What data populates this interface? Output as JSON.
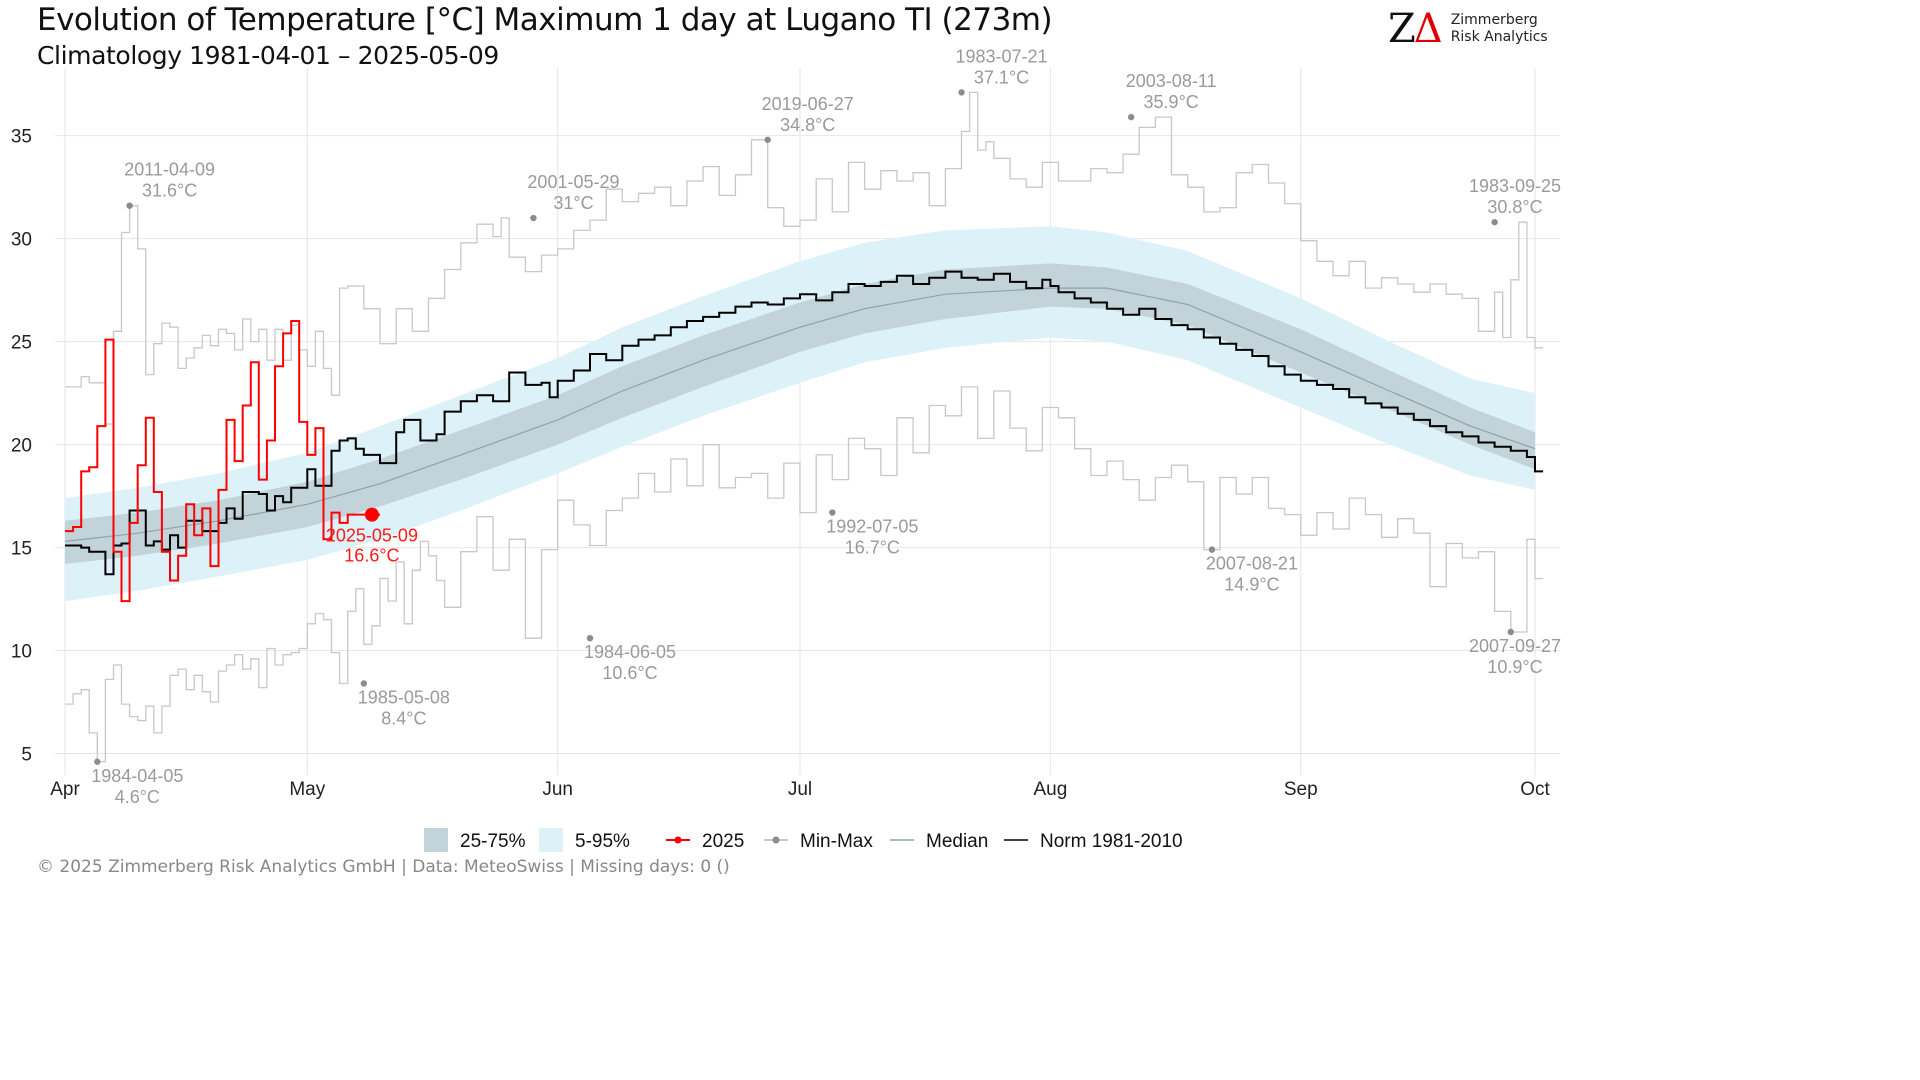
{
  "header": {
    "title": "Evolution of Temperature [°C] Maximum 1 day at Lugano  TI (273m)",
    "subtitle": "Climatology 1981-04-01 – 2025-05-09"
  },
  "logo": {
    "mark_z": "Z",
    "mark_delta": "Δ",
    "line1": "Zimmerberg",
    "line2": "Risk Analytics"
  },
  "footer": "©  2025 Zimmerberg Risk Analytics GmbH | Data: MeteoSwiss | Missing days: 0 ()",
  "colors": {
    "band_25_75": "#c2d3d9",
    "band_5_95": "#dcf1f8",
    "current": "#ff0000",
    "minmax": "#c8c8c8",
    "median": "#8fa3aa",
    "norm": "#000000",
    "annotation": "#9a9a9a",
    "grid": "#e6e6e6"
  },
  "chart_data": {
    "type": "line",
    "title": "Evolution of Temperature [°C] Maximum 1 day at Lugano  TI (273m)",
    "subtitle": "Climatology 1981-04-01 – 2025-05-09",
    "x_domain_doy": [
      1,
      183
    ],
    "ylim": [
      4.2,
      37.8
    ],
    "y_ticks": [
      5,
      10,
      15,
      20,
      25,
      30,
      35
    ],
    "x_ticks": [
      {
        "label": "Apr",
        "doy": 1
      },
      {
        "label": "May",
        "doy": 31
      },
      {
        "label": "Jun",
        "doy": 62
      },
      {
        "label": "Jul",
        "doy": 92
      },
      {
        "label": "Aug",
        "doy": 123
      },
      {
        "label": "Sep",
        "doy": 154
      },
      {
        "label": "Oct",
        "doy": 183
      }
    ],
    "legend": [
      {
        "label": "25-75%",
        "kind": "fill",
        "color_key": "band_25_75"
      },
      {
        "label": "5-95%",
        "kind": "fill",
        "color_key": "band_5_95"
      },
      {
        "label": "2025",
        "kind": "line-dot",
        "color_key": "current"
      },
      {
        "label": "Min-Max",
        "kind": "line-dot",
        "color_key": "minmax"
      },
      {
        "label": "Median",
        "kind": "line",
        "color_key": "median"
      },
      {
        "label": "Norm 1981-2010",
        "kind": "line",
        "color_key": "norm"
      }
    ],
    "legend_position": "bottom",
    "grid": true,
    "series": [
      {
        "name": "25-75%",
        "kind": "band",
        "x": [
          1,
          10,
          20,
          31,
          40,
          50,
          62,
          70,
          80,
          92,
          100,
          110,
          123,
          130,
          140,
          154,
          165,
          175,
          183
        ],
        "lower": [
          14.2,
          14.6,
          15.2,
          16.0,
          17.0,
          18.3,
          20.0,
          21.3,
          22.8,
          24.5,
          25.4,
          26.1,
          26.7,
          26.6,
          25.8,
          23.5,
          21.7,
          20.0,
          18.8
        ],
        "upper": [
          16.3,
          16.7,
          17.3,
          18.2,
          19.3,
          20.7,
          22.4,
          23.8,
          25.3,
          26.9,
          27.8,
          28.5,
          28.8,
          28.6,
          27.8,
          25.6,
          23.6,
          21.8,
          20.6
        ]
      },
      {
        "name": "5-95%",
        "kind": "band",
        "x": [
          1,
          10,
          20,
          31,
          40,
          50,
          62,
          70,
          80,
          92,
          100,
          110,
          123,
          130,
          140,
          154,
          165,
          175,
          183
        ],
        "lower": [
          12.4,
          12.9,
          13.6,
          14.4,
          15.4,
          16.8,
          18.6,
          19.9,
          21.4,
          23.0,
          24.0,
          24.7,
          25.2,
          25.0,
          24.1,
          21.8,
          20.0,
          18.5,
          17.8
        ],
        "upper": [
          17.4,
          17.9,
          18.6,
          19.6,
          20.9,
          22.4,
          24.2,
          25.7,
          27.2,
          28.9,
          29.8,
          30.4,
          30.6,
          30.3,
          29.4,
          27.1,
          25.0,
          23.2,
          22.5
        ]
      },
      {
        "name": "Median",
        "kind": "line",
        "x": [
          1,
          10,
          20,
          31,
          40,
          50,
          62,
          70,
          80,
          92,
          100,
          110,
          123,
          130,
          140,
          154,
          165,
          175,
          183
        ],
        "values": [
          15.3,
          15.7,
          16.3,
          17.1,
          18.1,
          19.5,
          21.2,
          22.6,
          24.1,
          25.7,
          26.6,
          27.3,
          27.6,
          27.6,
          26.8,
          24.5,
          22.6,
          20.9,
          19.8
        ]
      },
      {
        "name": "Norm 1981-2010",
        "kind": "step",
        "x": [
          1,
          3,
          4,
          6,
          7,
          8,
          9,
          11,
          12,
          13,
          14,
          15,
          16,
          18,
          20,
          21,
          22,
          23,
          25,
          26,
          27,
          28,
          29,
          31,
          32,
          34,
          35,
          36,
          37,
          38,
          40,
          42,
          43,
          45,
          47,
          48,
          50,
          52,
          54,
          56,
          58,
          60,
          61,
          62,
          64,
          66,
          68,
          70,
          72,
          74,
          76,
          78,
          80,
          82,
          84,
          86,
          88,
          90,
          92,
          94,
          96,
          98,
          100,
          102,
          104,
          106,
          108,
          110,
          112,
          114,
          116,
          118,
          120,
          122,
          123,
          124,
          126,
          128,
          130,
          132,
          134,
          136,
          138,
          140,
          142,
          144,
          146,
          148,
          150,
          152,
          154,
          156,
          158,
          160,
          162,
          164,
          166,
          168,
          170,
          172,
          174,
          176,
          178,
          180,
          182,
          183
        ],
        "values": [
          15.1,
          15.0,
          14.8,
          13.7,
          15.1,
          15.2,
          16.8,
          15.1,
          15.3,
          14.9,
          15.6,
          15.0,
          16.3,
          15.8,
          16.2,
          16.9,
          16.4,
          17.7,
          17.6,
          16.8,
          17.5,
          17.2,
          17.9,
          18.8,
          18.0,
          19.7,
          20.2,
          20.3,
          19.8,
          19.5,
          19.1,
          20.6,
          21.2,
          20.2,
          20.5,
          21.6,
          22.1,
          22.4,
          22.1,
          23.5,
          22.9,
          23.0,
          22.3,
          23.1,
          23.6,
          24.4,
          24.1,
          24.8,
          25.1,
          25.3,
          25.7,
          26.0,
          26.2,
          26.4,
          26.7,
          26.9,
          26.8,
          27.1,
          27.3,
          27.0,
          27.4,
          27.8,
          27.7,
          27.9,
          28.2,
          27.8,
          28.1,
          28.4,
          28.1,
          28.0,
          28.3,
          27.9,
          27.6,
          28.0,
          27.7,
          27.4,
          27.1,
          26.9,
          26.6,
          26.3,
          26.6,
          26.1,
          25.8,
          25.6,
          25.2,
          24.9,
          24.6,
          24.3,
          23.8,
          23.4,
          23.1,
          22.9,
          22.7,
          22.3,
          22.0,
          21.8,
          21.5,
          21.2,
          20.9,
          20.6,
          20.4,
          20.1,
          19.9,
          19.7,
          19.4,
          18.7
        ]
      },
      {
        "name": "Max",
        "kind": "step",
        "x": [
          1,
          3,
          4,
          6,
          7,
          8,
          9,
          10,
          11,
          12,
          13,
          14,
          15,
          16,
          17,
          18,
          19,
          20,
          21,
          22,
          23,
          24,
          25,
          26,
          27,
          28,
          29,
          30,
          31,
          32,
          33,
          34,
          35,
          36,
          38,
          40,
          42,
          44,
          46,
          48,
          50,
          52,
          54,
          55,
          56,
          58,
          60,
          62,
          64,
          66,
          68,
          70,
          72,
          74,
          76,
          78,
          80,
          82,
          84,
          86,
          88,
          90,
          92,
          94,
          96,
          98,
          100,
          102,
          104,
          106,
          108,
          110,
          112,
          113,
          114,
          115,
          116,
          118,
          120,
          122,
          124,
          126,
          128,
          130,
          132,
          134,
          136,
          138,
          140,
          142,
          144,
          146,
          148,
          150,
          152,
          154,
          156,
          158,
          160,
          162,
          164,
          166,
          168,
          170,
          172,
          174,
          176,
          178,
          179,
          180,
          181,
          182,
          183
        ],
        "values": [
          22.8,
          23.3,
          23.0,
          21.0,
          25.5,
          30.3,
          31.6,
          29.5,
          23.4,
          24.9,
          25.9,
          25.7,
          23.7,
          24.2,
          24.7,
          25.3,
          24.8,
          25.6,
          25.4,
          24.6,
          26.1,
          25.0,
          25.6,
          24.1,
          25.6,
          24.1,
          25.8,
          24.6,
          23.8,
          25.5,
          23.7,
          22.4,
          27.6,
          27.7,
          26.6,
          24.9,
          26.6,
          25.5,
          27.1,
          28.5,
          29.8,
          30.7,
          30.1,
          31.0,
          29.1,
          28.4,
          29.2,
          29.5,
          30.4,
          30.9,
          32.4,
          31.8,
          32.2,
          32.5,
          31.6,
          32.8,
          33.5,
          32.1,
          33.1,
          34.8,
          31.5,
          30.6,
          30.9,
          32.9,
          31.3,
          33.7,
          32.4,
          33.3,
          32.8,
          33.2,
          31.6,
          33.4,
          35.2,
          37.1,
          34.3,
          34.7,
          33.9,
          32.9,
          32.5,
          33.7,
          32.8,
          32.8,
          33.4,
          33.2,
          34.1,
          35.4,
          35.9,
          33.1,
          32.5,
          31.3,
          31.5,
          33.2,
          33.6,
          32.7,
          31.7,
          29.9,
          28.9,
          28.2,
          28.9,
          27.6,
          28.1,
          27.8,
          27.4,
          27.8,
          27.3,
          27.1,
          25.5,
          27.4,
          25.2,
          28.0,
          30.8,
          25.2,
          24.7
        ]
      },
      {
        "name": "Min",
        "kind": "step",
        "x": [
          1,
          2,
          3,
          4,
          5,
          6,
          7,
          8,
          9,
          10,
          11,
          12,
          13,
          14,
          15,
          16,
          17,
          18,
          19,
          20,
          21,
          22,
          23,
          24,
          25,
          26,
          27,
          28,
          29,
          30,
          31,
          32,
          33,
          34,
          35,
          36,
          37,
          38,
          39,
          40,
          41,
          42,
          43,
          44,
          45,
          46,
          47,
          48,
          50,
          52,
          54,
          56,
          58,
          60,
          62,
          64,
          66,
          68,
          70,
          72,
          74,
          76,
          78,
          80,
          82,
          84,
          86,
          88,
          90,
          92,
          94,
          96,
          98,
          100,
          102,
          104,
          106,
          108,
          110,
          112,
          114,
          116,
          118,
          120,
          122,
          124,
          126,
          128,
          130,
          132,
          134,
          136,
          138,
          140,
          142,
          144,
          146,
          148,
          150,
          152,
          154,
          156,
          158,
          160,
          162,
          164,
          166,
          168,
          170,
          172,
          174,
          176,
          178,
          180,
          182,
          183
        ],
        "values": [
          7.4,
          7.9,
          8.1,
          6.0,
          4.6,
          8.6,
          9.3,
          7.4,
          6.8,
          6.6,
          7.3,
          6.0,
          7.3,
          8.8,
          9.1,
          8.1,
          8.8,
          8.0,
          7.5,
          9.0,
          9.3,
          9.8,
          9.1,
          9.6,
          8.2,
          10.1,
          9.3,
          9.8,
          9.9,
          10.1,
          11.3,
          11.8,
          11.5,
          9.9,
          8.4,
          11.9,
          13.0,
          10.3,
          11.2,
          13.5,
          12.4,
          14.3,
          11.3,
          13.9,
          15.3,
          14.6,
          13.4,
          12.1,
          14.8,
          16.5,
          13.9,
          15.4,
          10.6,
          14.9,
          17.3,
          16.1,
          15.1,
          16.8,
          17.4,
          18.6,
          17.7,
          19.3,
          18.0,
          20.0,
          17.9,
          18.4,
          18.6,
          17.4,
          19.1,
          16.7,
          19.5,
          18.3,
          20.3,
          19.8,
          18.5,
          21.3,
          19.6,
          21.9,
          21.4,
          22.8,
          20.3,
          22.6,
          20.8,
          19.7,
          21.8,
          21.3,
          19.8,
          18.5,
          19.2,
          18.3,
          17.3,
          18.4,
          19.0,
          18.2,
          14.9,
          18.4,
          17.6,
          18.4,
          16.9,
          16.6,
          15.6,
          16.7,
          15.9,
          17.4,
          16.6,
          15.5,
          16.4,
          15.7,
          13.1,
          15.2,
          14.5,
          14.8,
          11.9,
          10.9,
          15.4,
          13.5
        ]
      },
      {
        "name": "2025",
        "kind": "step",
        "x": [
          1,
          2,
          3,
          4,
          5,
          6,
          7,
          8,
          9,
          10,
          11,
          12,
          13,
          14,
          15,
          16,
          17,
          18,
          19,
          20,
          21,
          22,
          23,
          24,
          25,
          26,
          27,
          28,
          29,
          30,
          31,
          32,
          33,
          34,
          35,
          36,
          37,
          38,
          39
        ],
        "values": [
          15.8,
          16.0,
          18.7,
          18.9,
          20.9,
          25.1,
          14.8,
          12.4,
          16.2,
          19.0,
          21.3,
          17.7,
          14.8,
          13.4,
          14.6,
          17.1,
          15.6,
          16.9,
          14.1,
          17.8,
          21.2,
          19.2,
          21.9,
          24.0,
          18.3,
          20.2,
          23.8,
          25.4,
          26.0,
          21.1,
          19.5,
          20.8,
          15.4,
          16.7,
          16.2,
          16.6,
          16.6,
          16.6,
          16.6
        ]
      }
    ],
    "current_point": {
      "label": "2025-05-09",
      "value": 16.6,
      "value_label": "16.6°C",
      "doy": 39
    },
    "annotations": [
      {
        "date": "2011-04-09",
        "value_label": "31.6°C",
        "value": 31.6,
        "doy": 9,
        "type": "max"
      },
      {
        "date": "1984-04-05",
        "value_label": "4.6°C",
        "value": 4.6,
        "doy": 5,
        "type": "min"
      },
      {
        "date": "2001-05-29",
        "value_label": "31°C",
        "value": 31.0,
        "doy": 59,
        "type": "max"
      },
      {
        "date": "1985-05-08",
        "value_label": "8.4°C",
        "value": 8.4,
        "doy": 38,
        "type": "min"
      },
      {
        "date": "2019-06-27",
        "value_label": "34.8°C",
        "value": 34.8,
        "doy": 88,
        "type": "max"
      },
      {
        "date": "1984-06-05",
        "value_label": "10.6°C",
        "value": 10.6,
        "doy": 66,
        "type": "min"
      },
      {
        "date": "1983-07-21",
        "value_label": "37.1°C",
        "value": 37.1,
        "doy": 112,
        "type": "max"
      },
      {
        "date": "1992-07-05",
        "value_label": "16.7°C",
        "value": 16.7,
        "doy": 96,
        "type": "min"
      },
      {
        "date": "2003-08-11",
        "value_label": "35.9°C",
        "value": 35.9,
        "doy": 133,
        "type": "max"
      },
      {
        "date": "2007-08-21",
        "value_label": "14.9°C",
        "value": 14.9,
        "doy": 143,
        "type": "min"
      },
      {
        "date": "1983-09-25",
        "value_label": "30.8°C",
        "value": 30.8,
        "doy": 178,
        "type": "max"
      },
      {
        "date": "2007-09-27",
        "value_label": "10.9°C",
        "value": 10.9,
        "doy": 180,
        "type": "min"
      }
    ]
  }
}
